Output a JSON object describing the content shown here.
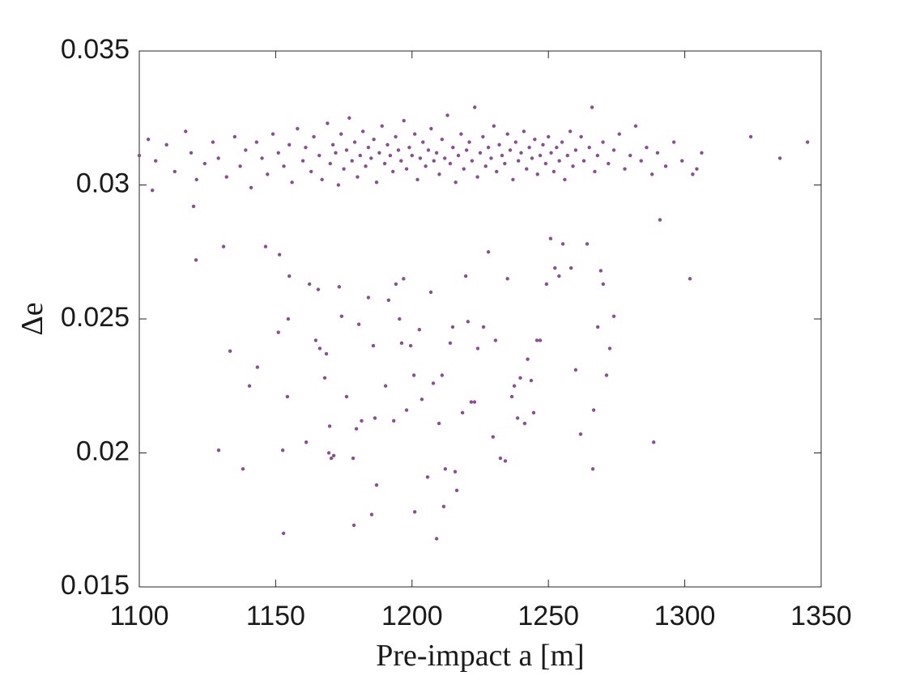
{
  "chart_data": {
    "type": "scatter",
    "xlabel": "Pre-impact a [m]",
    "ylabel": "Δe",
    "color": "#8a4f92",
    "xlim": [
      1100,
      1350
    ],
    "xticks": [
      1100,
      1150,
      1200,
      1250,
      1300,
      1350
    ],
    "ylim": [
      0.015,
      0.035
    ],
    "yticks": [
      0.015,
      0.02,
      0.025,
      0.03,
      0.035
    ],
    "x": [
      1104.8,
      1120.8,
      1119.9,
      1130.9,
      1133.3,
      1129.1,
      1138.0,
      1140.4,
      1143.3,
      1146.3,
      1151.0,
      1152.6,
      1152.9,
      1154.3,
      1154.6,
      1155.0,
      1151.4,
      1161.2,
      1162.4,
      1164.7,
      1165.6,
      1166.2,
      1168.0,
      1168.6,
      1169.5,
      1169.8,
      1170.4,
      1171.3,
      1173.3,
      1174.2,
      1176.0,
      1178.4,
      1178.7,
      1179.6,
      1180.5,
      1181.5,
      1184.0,
      1185.2,
      1185.8,
      1186.4,
      1187.0,
      1190.3,
      1191.4,
      1193.3,
      1194.1,
      1195.4,
      1196.2,
      1196.9,
      1198.0,
      1199.5,
      1200.7,
      1201.0,
      1202.7,
      1203.6,
      1205.7,
      1206.9,
      1207.8,
      1209.0,
      1209.9,
      1211.0,
      1211.6,
      1212.2,
      1214.0,
      1214.9,
      1215.8,
      1216.4,
      1218.5,
      1219.7,
      1220.5,
      1221.7,
      1222.9,
      1224.1,
      1226.2,
      1228.0,
      1229.7,
      1230.6,
      1232.4,
      1234.2,
      1235.0,
      1236.6,
      1237.5,
      1238.7,
      1239.7,
      1241.3,
      1242.4,
      1243.7,
      1244.6,
      1245.8,
      1247.0,
      1249.3,
      1250.8,
      1252.4,
      1253.9,
      1255.3,
      1258.3,
      1260.0,
      1261.8,
      1264.2,
      1266.3,
      1266.6,
      1268.1,
      1269.2,
      1270.1,
      1271.3,
      1272.5,
      1274.0,
      1290.9,
      1288.6,
      1301.9,
      1302.9,
      1304.4,
      1306.2,
      1324.2,
      1334.9,
      1345.0,
      1100.0,
      1103.3,
      1106,
      1110,
      1113,
      1117,
      1119,
      1121,
      1124,
      1127,
      1129,
      1132,
      1135,
      1137,
      1139,
      1141,
      1143,
      1145,
      1147,
      1149,
      1151,
      1153,
      1155,
      1156,
      1158,
      1160,
      1161,
      1163,
      1164,
      1166,
      1167,
      1169,
      1170,
      1171,
      1172,
      1173,
      1174,
      1175,
      1176,
      1177,
      1178,
      1179,
      1180,
      1181,
      1182,
      1183,
      1184,
      1185,
      1186,
      1187,
      1188,
      1189,
      1190,
      1191,
      1192,
      1193,
      1194,
      1195,
      1196,
      1197,
      1198,
      1199,
      1200,
      1201,
      1202,
      1203,
      1204,
      1205,
      1206,
      1207,
      1208,
      1209,
      1210,
      1211,
      1212,
      1213,
      1214,
      1215,
      1216,
      1217,
      1218,
      1219,
      1220,
      1221,
      1222,
      1223,
      1224,
      1225,
      1226,
      1227,
      1228,
      1229,
      1230,
      1231,
      1232,
      1233,
      1234,
      1235,
      1236,
      1237,
      1238,
      1239,
      1240,
      1241,
      1242,
      1243,
      1244,
      1245,
      1246,
      1247,
      1248,
      1249,
      1250,
      1251,
      1252,
      1253,
      1254,
      1255,
      1256,
      1257,
      1258,
      1259,
      1260,
      1262,
      1263,
      1265,
      1266,
      1267,
      1268,
      1270,
      1272,
      1274,
      1276,
      1278,
      1280,
      1282,
      1284,
      1286,
      1288,
      1290,
      1293,
      1296,
      1299
    ],
    "values": [
      0.0298,
      0.0272,
      0.0292,
      0.0277,
      0.0238,
      0.0201,
      0.0194,
      0.0225,
      0.0232,
      0.0277,
      0.0245,
      0.0201,
      0.017,
      0.0221,
      0.025,
      0.0266,
      0.0274,
      0.0204,
      0.0263,
      0.0242,
      0.0261,
      0.0239,
      0.0228,
      0.0237,
      0.02,
      0.021,
      0.0198,
      0.0199,
      0.0262,
      0.0251,
      0.0221,
      0.0198,
      0.0173,
      0.0209,
      0.0248,
      0.0212,
      0.0258,
      0.0177,
      0.024,
      0.0213,
      0.0188,
      0.0225,
      0.0257,
      0.0212,
      0.0263,
      0.025,
      0.0241,
      0.0265,
      0.0216,
      0.024,
      0.0229,
      0.0178,
      0.0246,
      0.022,
      0.0191,
      0.026,
      0.0226,
      0.0168,
      0.0211,
      0.0229,
      0.018,
      0.0194,
      0.0241,
      0.0247,
      0.0193,
      0.0186,
      0.0215,
      0.0266,
      0.0249,
      0.0219,
      0.0219,
      0.0239,
      0.0247,
      0.0275,
      0.0206,
      0.0242,
      0.0198,
      0.0197,
      0.0265,
      0.0221,
      0.0225,
      0.0213,
      0.0228,
      0.0211,
      0.0235,
      0.0227,
      0.0215,
      0.0242,
      0.0242,
      0.0263,
      0.028,
      0.0269,
      0.0266,
      0.0278,
      0.0269,
      0.0231,
      0.0207,
      0.0278,
      0.0194,
      0.0216,
      0.0247,
      0.0268,
      0.0263,
      0.0229,
      0.0239,
      0.0251,
      0.0287,
      0.0204,
      0.0265,
      0.0304,
      0.0306,
      0.0312,
      0.0318,
      0.031,
      0.0316,
      0.0311,
      0.0317,
      0.0309,
      0.0315,
      0.0305,
      0.032,
      0.0312,
      0.0302,
      0.0308,
      0.0316,
      0.031,
      0.0303,
      0.0318,
      0.0307,
      0.0313,
      0.0299,
      0.0316,
      0.031,
      0.0304,
      0.0319,
      0.0312,
      0.0307,
      0.0315,
      0.0301,
      0.0321,
      0.0309,
      0.0314,
      0.0305,
      0.0318,
      0.0311,
      0.0302,
      0.0323,
      0.0308,
      0.0315,
      0.0312,
      0.03,
      0.0319,
      0.0306,
      0.0313,
      0.0325,
      0.0309,
      0.0316,
      0.0303,
      0.0311,
      0.032,
      0.0307,
      0.0314,
      0.031,
      0.0317,
      0.0301,
      0.0312,
      0.0322,
      0.0308,
      0.0315,
      0.0311,
      0.0305,
      0.0318,
      0.0313,
      0.0309,
      0.0324,
      0.0306,
      0.0314,
      0.0311,
      0.0319,
      0.0302,
      0.031,
      0.0316,
      0.0307,
      0.0313,
      0.0321,
      0.0309,
      0.0312,
      0.0304,
      0.0317,
      0.031,
      0.0326,
      0.0308,
      0.0314,
      0.0301,
      0.0311,
      0.0319,
      0.0306,
      0.0313,
      0.0316,
      0.0309,
      0.0329,
      0.0303,
      0.0312,
      0.0318,
      0.0307,
      0.0314,
      0.031,
      0.0322,
      0.0305,
      0.0315,
      0.0311,
      0.0308,
      0.0319,
      0.0313,
      0.0302,
      0.0316,
      0.0309,
      0.0312,
      0.032,
      0.0306,
      0.0314,
      0.031,
      0.0317,
      0.0304,
      0.0311,
      0.0315,
      0.0308,
      0.0318,
      0.0312,
      0.0305,
      0.0314,
      0.0309,
      0.0316,
      0.0302,
      0.0311,
      0.032,
      0.0307,
      0.0313,
      0.0318,
      0.0309,
      0.0314,
      0.0329,
      0.0305,
      0.0311,
      0.0316,
      0.0308,
      0.0313,
      0.0319,
      0.0306,
      0.0311,
      0.0322,
      0.0309,
      0.0314,
      0.0304,
      0.0312,
      0.0307,
      0.0316,
      0.0309
    ]
  }
}
